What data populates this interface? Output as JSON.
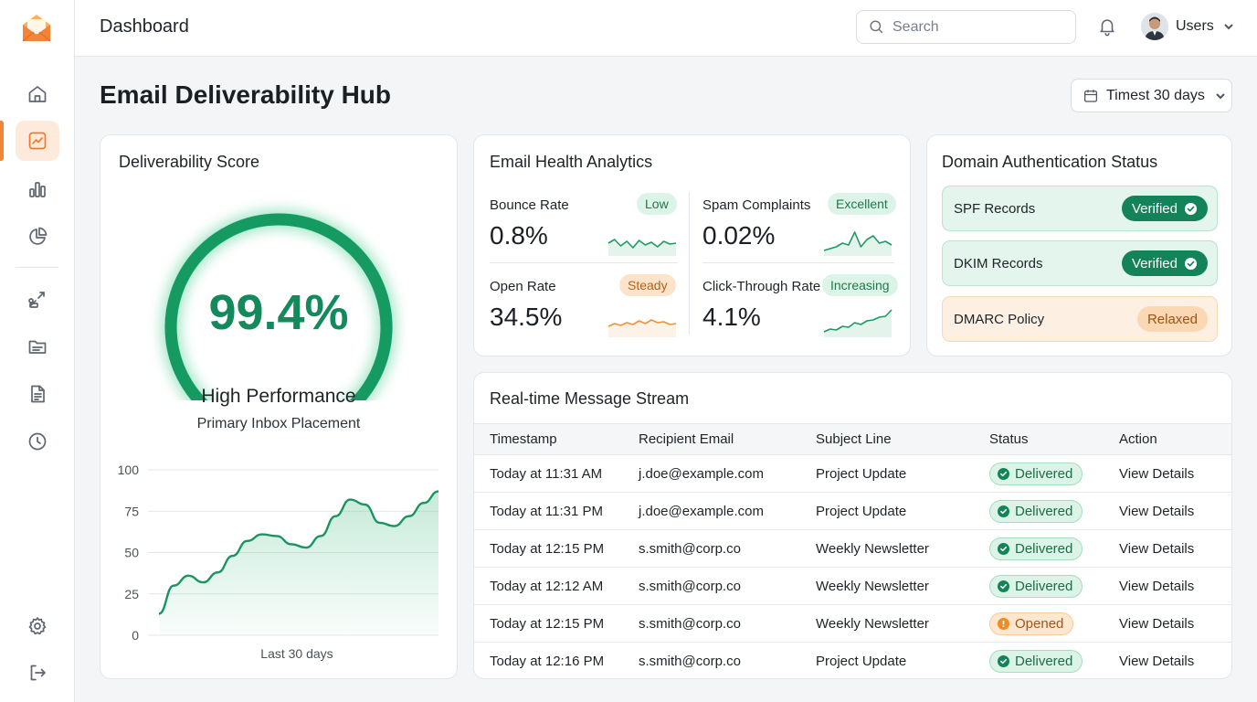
{
  "header": {
    "title": "Dashboard",
    "search_placeholder": "Search",
    "user_label": "Users"
  },
  "sidebar": {
    "items": [
      {
        "name": "home-icon"
      },
      {
        "name": "trend-icon",
        "active": true
      },
      {
        "name": "bar-chart-icon"
      },
      {
        "name": "pie-chart-icon"
      },
      {
        "name": "routing-icon"
      },
      {
        "name": "folder-icon"
      },
      {
        "name": "document-icon"
      },
      {
        "name": "clock-icon"
      },
      {
        "name": "gear-icon"
      },
      {
        "name": "logout-icon"
      }
    ]
  },
  "page": {
    "title": "Email Deliverability Hub",
    "range_label": "Timest 30 days"
  },
  "score": {
    "title": "Deliverability Score",
    "value": "99.4%",
    "gauge_fraction": 0.994,
    "label": "High Performance",
    "sublabel": "Primary Inbox Placement",
    "chart_data": {
      "type": "area",
      "x_label": "Last 30 days",
      "y_ticks": [
        "100",
        "75",
        "50",
        "25",
        "0"
      ],
      "ylim": [
        0,
        100
      ],
      "values": [
        13,
        30,
        36,
        32,
        38,
        48,
        57,
        61,
        60,
        55,
        53,
        60,
        72,
        82,
        79,
        68,
        66,
        72,
        80,
        87
      ]
    }
  },
  "health": {
    "title": "Email Health Analytics",
    "metrics": [
      {
        "name": "Bounce Rate",
        "value": "0.8%",
        "badge": "Low",
        "tone": "green"
      },
      {
        "name": "Spam Complaints",
        "value": "0.02%",
        "badge": "Excellent",
        "tone": "green"
      },
      {
        "name": "Open Rate",
        "value": "34.5%",
        "badge": "Steady",
        "tone": "orange"
      },
      {
        "name": "Click-Through Rate",
        "value": "4.1%",
        "badge": "Increasing",
        "tone": "green"
      }
    ],
    "colors": {
      "green": "#1f9a64",
      "orange": "#f0933a"
    }
  },
  "domain": {
    "title": "Domain Authentication Status",
    "records": [
      {
        "name": "SPF Records",
        "status": "Verified",
        "tone": "green"
      },
      {
        "name": "DKIM Records",
        "status": "Verified",
        "tone": "green"
      },
      {
        "name": "DMARC Policy",
        "status": "Relaxed",
        "tone": "orange"
      }
    ]
  },
  "stream": {
    "title": "Real-time Message Stream",
    "columns": [
      "Timestamp",
      "Recipient Email",
      "Subject Line",
      "Status",
      "Action"
    ],
    "rows": [
      {
        "time": "Today at 11:31 AM",
        "email": "j.doe@example.com",
        "subject": "Project Update",
        "status": "Delivered",
        "action": "View Details"
      },
      {
        "time": "Today at 11:31 PM",
        "email": "j.doe@example.com",
        "subject": "Project Update",
        "status": "Delivered",
        "action": "View Details"
      },
      {
        "time": "Today at 12:15 PM",
        "email": "s.smith@corp.co",
        "subject": "Weekly Newsletter",
        "status": "Delivered",
        "action": "View Details"
      },
      {
        "time": "Today at 12:12 AM",
        "email": "s.smith@corp.co",
        "subject": "Weekly Newsletter",
        "status": "Delivered",
        "action": "View Details"
      },
      {
        "time": "Today at 12:15 PM",
        "email": "s.smith@corp.co",
        "subject": "Weekly Newsletter",
        "status": "Opened",
        "action": "View Details"
      },
      {
        "time": "Today at 12:16 PM",
        "email": "s.smith@corp.co",
        "subject": "Project Update",
        "status": "Delivered",
        "action": "View Details"
      }
    ]
  }
}
